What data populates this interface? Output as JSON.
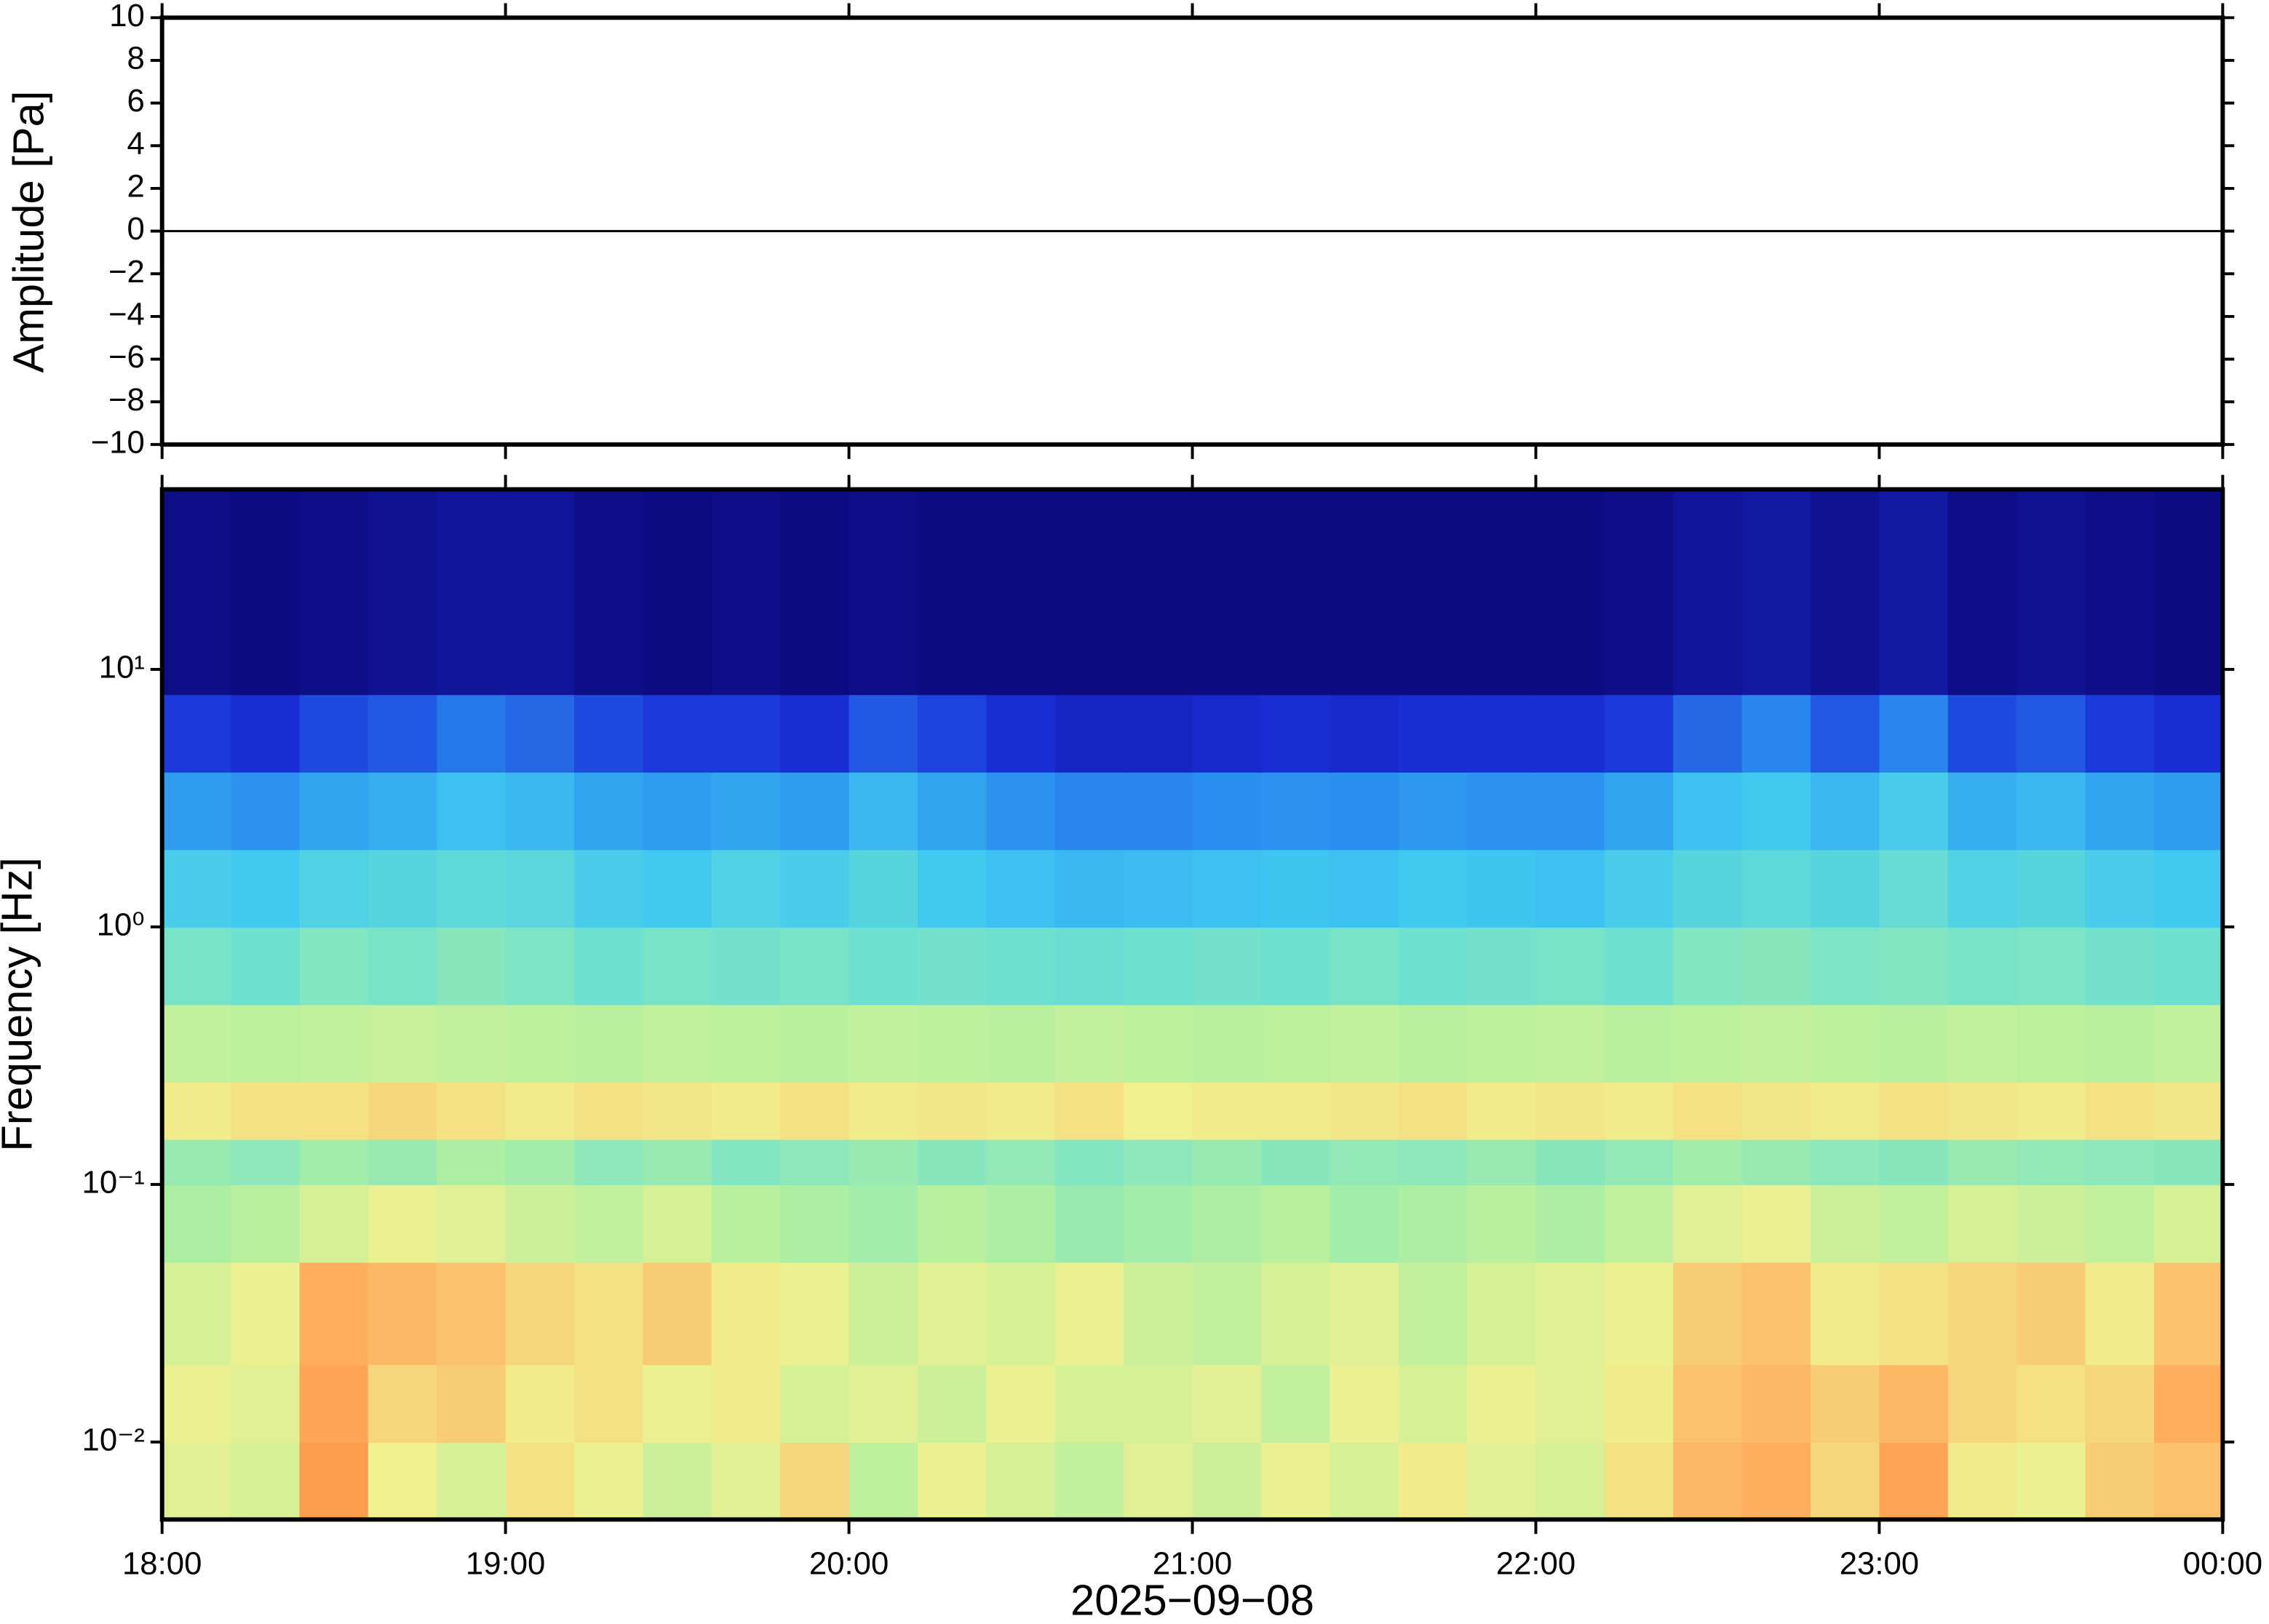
{
  "chart_data": [
    {
      "type": "line",
      "ylabel": "Amplitude [Pa]",
      "xlim": [
        18,
        24
      ],
      "xticks": [
        18,
        19,
        20,
        21,
        22,
        23,
        24
      ],
      "ylim": [
        -10,
        10
      ],
      "yticks": [
        {
          "value": -10,
          "label": "−10"
        },
        {
          "value": -8,
          "label": "−8"
        },
        {
          "value": -6,
          "label": "−6"
        },
        {
          "value": -4,
          "label": "−4"
        },
        {
          "value": -2,
          "label": "−2"
        },
        0,
        2,
        4,
        6,
        8,
        10
      ],
      "x": [
        18,
        19,
        20,
        21,
        22,
        23,
        24
      ],
      "values": [
        0,
        0,
        0,
        0,
        0,
        0,
        0
      ],
      "color": "#000000"
    },
    {
      "type": "heatmap",
      "xlabel": "2025−09−08",
      "ylabel": "Frequency [Hz]",
      "log_y": true,
      "xlim": [
        18,
        24
      ],
      "xticks": [
        {
          "value": 18,
          "label": "18:00"
        },
        {
          "value": 19,
          "label": "19:00"
        },
        {
          "value": 20,
          "label": "20:00"
        },
        {
          "value": 21,
          "label": "21:00"
        },
        {
          "value": 22,
          "label": "22:00"
        },
        {
          "value": 23,
          "label": "23:00"
        },
        {
          "value": 24,
          "label": "00:00"
        }
      ],
      "ylim": [
        0.005,
        50
      ],
      "yticks": [
        {
          "value": 0.01,
          "label": "10⁻²"
        },
        {
          "value": 0.1,
          "label": "10⁻¹"
        },
        {
          "value": 1,
          "label": "10⁰"
        },
        {
          "value": 10,
          "label": "10¹"
        }
      ],
      "xbins": [
        18,
        18.2,
        18.4,
        18.6,
        18.8,
        19,
        19.2,
        19.4,
        19.6,
        19.8,
        20,
        20.2,
        20.4,
        20.6,
        20.8,
        21,
        21.2,
        21.4,
        21.6,
        21.8,
        22,
        22.2,
        22.4,
        22.6,
        22.8,
        23,
        23.2,
        23.4,
        23.6,
        23.8,
        24
      ],
      "ybins": [
        0.005,
        0.01,
        0.02,
        0.05,
        0.1,
        0.15,
        0.25,
        0.5,
        1,
        2,
        4,
        8,
        50
      ],
      "zlim": [
        0,
        100
      ],
      "colorscale": [
        "#0a0470",
        "#1a2fd8",
        "#2a8ef0",
        "#40c8f0",
        "#6ee0d0",
        "#b0f0a0",
        "#f0f090",
        "#ffb060",
        "#ff7a30"
      ],
      "z": [
        [
          72,
          70,
          92,
          75,
          70,
          78,
          74,
          68,
          72,
          80,
          65,
          74,
          70,
          66,
          72,
          68,
          74,
          70,
          76,
          72,
          70,
          78,
          86,
          88,
          80,
          90,
          76,
          74,
          82,
          84
        ],
        [
          74,
          72,
          90,
          80,
          82,
          76,
          78,
          74,
          76,
          70,
          72,
          68,
          74,
          70,
          70,
          72,
          66,
          74,
          70,
          74,
          72,
          76,
          84,
          86,
          82,
          86,
          80,
          78,
          80,
          88
        ],
        [
          70,
          74,
          88,
          86,
          84,
          80,
          78,
          82,
          76,
          74,
          68,
          72,
          70,
          74,
          68,
          66,
          70,
          72,
          66,
          70,
          72,
          74,
          82,
          84,
          76,
          78,
          80,
          82,
          76,
          84
        ],
        [
          62,
          64,
          70,
          74,
          72,
          68,
          66,
          70,
          64,
          62,
          60,
          64,
          62,
          58,
          60,
          62,
          64,
          60,
          62,
          64,
          62,
          66,
          72,
          74,
          68,
          66,
          70,
          68,
          66,
          70
        ],
        [
          58,
          56,
          60,
          58,
          62,
          60,
          56,
          58,
          54,
          56,
          58,
          55,
          57,
          54,
          56,
          58,
          55,
          57,
          56,
          58,
          55,
          57,
          60,
          58,
          56,
          55,
          58,
          57,
          56,
          55
        ],
        [
          76,
          78,
          78,
          80,
          78,
          76,
          78,
          77,
          76,
          78,
          76,
          77,
          76,
          78,
          75,
          76,
          76,
          77,
          78,
          76,
          77,
          76,
          78,
          77,
          76,
          78,
          77,
          76,
          78,
          77
        ],
        [
          66,
          65,
          66,
          67,
          66,
          65,
          64,
          66,
          65,
          64,
          66,
          65,
          64,
          66,
          65,
          64,
          65,
          66,
          64,
          65,
          66,
          64,
          65,
          66,
          65,
          64,
          66,
          65,
          64,
          66
        ],
        [
          52,
          50,
          54,
          52,
          55,
          53,
          50,
          52,
          51,
          52,
          50,
          51,
          50,
          49,
          50,
          51,
          50,
          52,
          50,
          51,
          52,
          50,
          54,
          55,
          53,
          54,
          52,
          53,
          51,
          50
        ],
        [
          40,
          38,
          42,
          44,
          46,
          45,
          40,
          38,
          42,
          40,
          44,
          38,
          36,
          34,
          35,
          36,
          37,
          36,
          38,
          37,
          36,
          40,
          44,
          46,
          44,
          48,
          42,
          44,
          40,
          38
        ],
        [
          28,
          26,
          30,
          32,
          36,
          34,
          30,
          28,
          30,
          28,
          34,
          30,
          26,
          24,
          24,
          25,
          26,
          25,
          27,
          26,
          26,
          30,
          36,
          38,
          34,
          40,
          32,
          34,
          30,
          28
        ],
        [
          14,
          12,
          16,
          18,
          22,
          20,
          16,
          14,
          14,
          12,
          18,
          15,
          12,
          10,
          10,
          11,
          12,
          11,
          12,
          12,
          12,
          14,
          20,
          24,
          18,
          24,
          16,
          18,
          14,
          12
        ],
        [
          3,
          2,
          3,
          4,
          5,
          5,
          3,
          2,
          3,
          2,
          3,
          2,
          2,
          2,
          2,
          2,
          2,
          2,
          2,
          2,
          2,
          3,
          5,
          6,
          4,
          6,
          3,
          4,
          3,
          2
        ]
      ]
    }
  ]
}
